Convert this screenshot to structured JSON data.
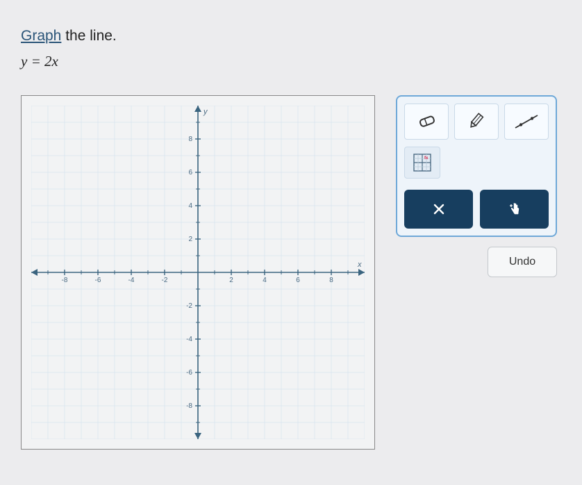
{
  "instruction": {
    "keyword": "Graph",
    "rest": " the line."
  },
  "equation": "y = 2x",
  "graph": {
    "type": "cartesian-grid",
    "xlim": [
      -10,
      10
    ],
    "ylim": [
      -10,
      10
    ],
    "tick_step": 1,
    "major_tick_step": 2,
    "x_labels": [
      "-8",
      "-6",
      "-4",
      "-2",
      "2",
      "4",
      "6",
      "8"
    ],
    "y_labels_pos": [
      "2",
      "4",
      "6",
      "8"
    ],
    "y_labels_neg": [
      "-2",
      "-4",
      "-6",
      "-8"
    ],
    "axis_label_x": "x",
    "axis_label_y": "y",
    "background_color": "#f2f3f4",
    "minor_grid_color": "#d8e5ef",
    "major_grid_color": "#c3d5e3",
    "axis_color": "#3a647f",
    "tick_color": "#3a647f",
    "label_color": "#4a6a82",
    "label_fontsize": 10
  },
  "toolbox": {
    "tools": [
      {
        "name": "eraser-icon"
      },
      {
        "name": "pencil-icon"
      },
      {
        "name": "line-icon"
      },
      {
        "name": "grid-marker-icon"
      }
    ],
    "actions": [
      {
        "name": "close-action",
        "bg": "#173e5f"
      },
      {
        "name": "pointer-action",
        "bg": "#173e5f"
      }
    ],
    "undo_label": "Undo"
  }
}
